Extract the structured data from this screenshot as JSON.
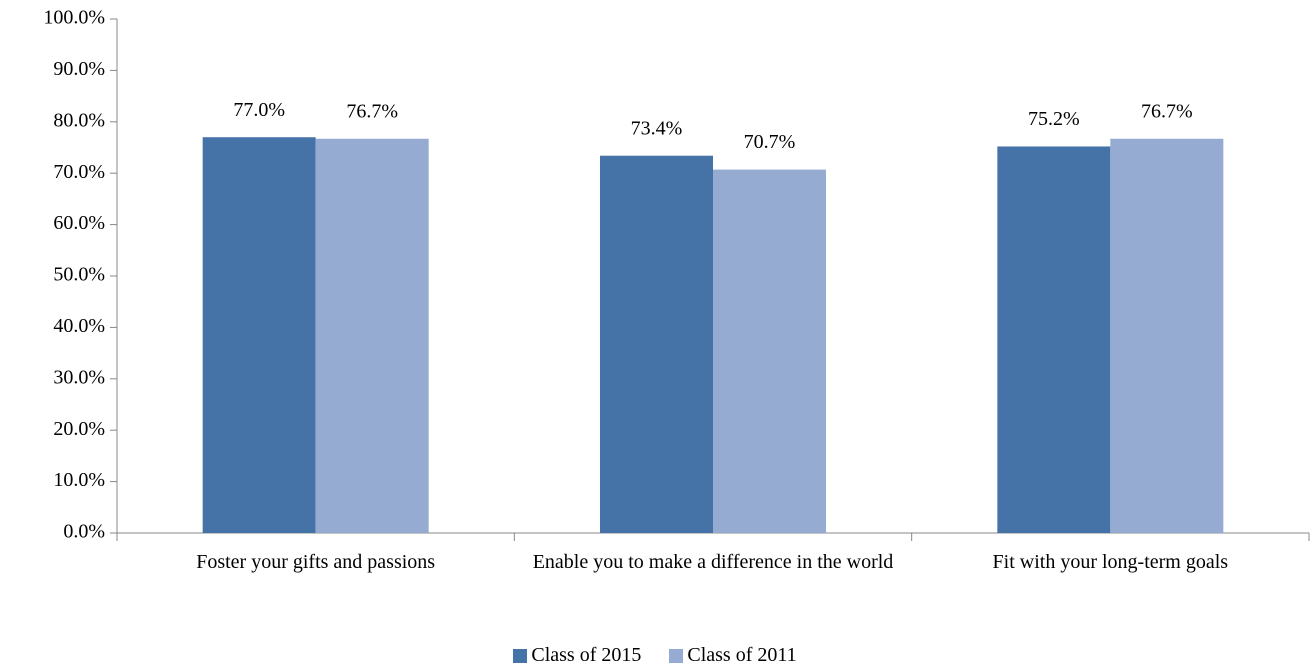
{
  "chart_data": {
    "type": "bar",
    "categories": [
      "Foster your gifts and passions",
      "Enable you to make a difference in the world",
      "Fit with your long-term goals"
    ],
    "series": [
      {
        "name": "Class of 2015",
        "color": "#4573a7",
        "values": [
          77.0,
          73.4,
          75.2
        ],
        "value_labels": [
          "77.0%",
          "73.4%",
          "75.2%"
        ]
      },
      {
        "name": "Class of 2011",
        "color": "#95abd1",
        "values": [
          76.7,
          70.7,
          76.7
        ],
        "value_labels": [
          "76.7%",
          "70.7%",
          "76.7%"
        ]
      }
    ],
    "ylim": [
      0,
      100
    ],
    "yticks": [
      {
        "value": 0,
        "label": "0.0%"
      },
      {
        "value": 10,
        "label": "10.0%"
      },
      {
        "value": 20,
        "label": "20.0%"
      },
      {
        "value": 30,
        "label": "30.0%"
      },
      {
        "value": 40,
        "label": "40.0%"
      },
      {
        "value": 50,
        "label": "50.0%"
      },
      {
        "value": 60,
        "label": "60.0%"
      },
      {
        "value": 70,
        "label": "70.0%"
      },
      {
        "value": 80,
        "label": "80.0%"
      },
      {
        "value": 90,
        "label": "90.0%"
      },
      {
        "value": 100,
        "label": "100.0%"
      }
    ],
    "grid": false,
    "legend": "bottom"
  }
}
